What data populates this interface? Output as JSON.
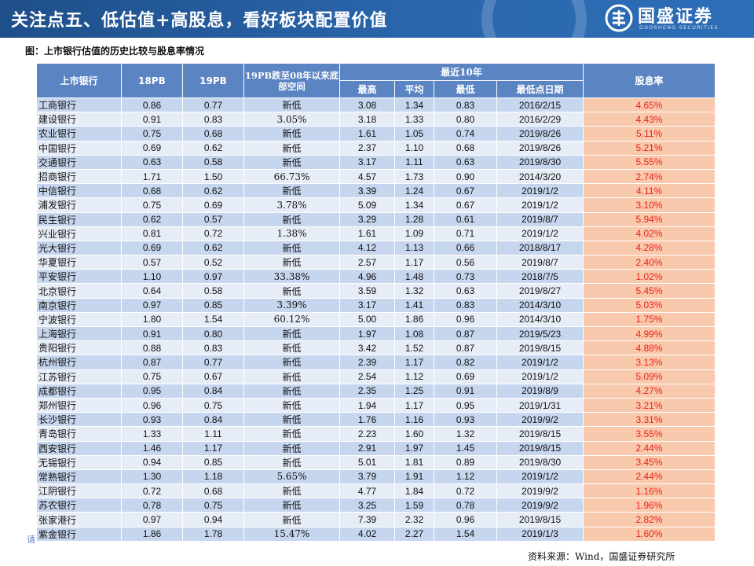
{
  "header": {
    "title": "关注点五、低估值+高股息，看好板块配置价值",
    "logo_name": "国盛证券",
    "logo_en": "GUOSHENG SECURITIES"
  },
  "caption": "图：上市银行估值的历史比较与股息率情况",
  "table": {
    "headers": {
      "bank": "上市银行",
      "pb18": "18PB",
      "pb19": "19PB",
      "space": "19PB跌至08年以来底部空间",
      "group": "最近10年",
      "high": "最高",
      "avg": "平均",
      "low": "最低",
      "low_date": "最低点日期",
      "yield": "股息率"
    },
    "rows": [
      [
        "工商银行",
        "0.86",
        "0.77",
        "新低",
        "3.08",
        "1.34",
        "0.83",
        "2016/2/15",
        "4.65%"
      ],
      [
        "建设银行",
        "0.91",
        "0.83",
        "3.05%",
        "3.18",
        "1.33",
        "0.80",
        "2016/2/29",
        "4.43%"
      ],
      [
        "农业银行",
        "0.75",
        "0.68",
        "新低",
        "1.61",
        "1.05",
        "0.74",
        "2019/8/26",
        "5.11%"
      ],
      [
        "中国银行",
        "0.69",
        "0.62",
        "新低",
        "2.37",
        "1.10",
        "0.68",
        "2019/8/26",
        "5.21%"
      ],
      [
        "交通银行",
        "0.63",
        "0.58",
        "新低",
        "3.17",
        "1.11",
        "0.63",
        "2019/8/30",
        "5.55%"
      ],
      [
        "招商银行",
        "1.71",
        "1.50",
        "66.73%",
        "4.57",
        "1.73",
        "0.90",
        "2014/3/20",
        "2.74%"
      ],
      [
        "中信银行",
        "0.68",
        "0.62",
        "新低",
        "3.39",
        "1.24",
        "0.67",
        "2019/1/2",
        "4.11%"
      ],
      [
        "浦发银行",
        "0.75",
        "0.69",
        "3.78%",
        "5.09",
        "1.34",
        "0.67",
        "2019/1/2",
        "3.10%"
      ],
      [
        "民生银行",
        "0.62",
        "0.57",
        "新低",
        "3.29",
        "1.28",
        "0.61",
        "2019/8/7",
        "5.94%"
      ],
      [
        "兴业银行",
        "0.81",
        "0.72",
        "1.38%",
        "1.61",
        "1.09",
        "0.71",
        "2019/1/2",
        "4.02%"
      ],
      [
        "光大银行",
        "0.69",
        "0.62",
        "新低",
        "4.12",
        "1.13",
        "0.66",
        "2018/8/17",
        "4.28%"
      ],
      [
        "华夏银行",
        "0.57",
        "0.52",
        "新低",
        "2.57",
        "1.17",
        "0.56",
        "2019/8/7",
        "2.40%"
      ],
      [
        "平安银行",
        "1.10",
        "0.97",
        "33.38%",
        "4.96",
        "1.48",
        "0.73",
        "2018/7/5",
        "1.02%"
      ],
      [
        "北京银行",
        "0.64",
        "0.58",
        "新低",
        "3.59",
        "1.32",
        "0.63",
        "2019/8/27",
        "5.45%"
      ],
      [
        "南京银行",
        "0.97",
        "0.85",
        "3.39%",
        "3.17",
        "1.41",
        "0.83",
        "2014/3/10",
        "5.03%"
      ],
      [
        "宁波银行",
        "1.80",
        "1.54",
        "60.12%",
        "5.00",
        "1.86",
        "0.96",
        "2014/3/10",
        "1.75%"
      ],
      [
        "上海银行",
        "0.91",
        "0.80",
        "新低",
        "1.97",
        "1.08",
        "0.87",
        "2019/5/23",
        "4.99%"
      ],
      [
        "贵阳银行",
        "0.88",
        "0.83",
        "新低",
        "3.42",
        "1.52",
        "0.87",
        "2019/8/15",
        "4.88%"
      ],
      [
        "杭州银行",
        "0.87",
        "0.77",
        "新低",
        "2.39",
        "1.17",
        "0.82",
        "2019/1/2",
        "3.13%"
      ],
      [
        "江苏银行",
        "0.75",
        "0.67",
        "新低",
        "2.54",
        "1.12",
        "0.69",
        "2019/1/2",
        "5.09%"
      ],
      [
        "成都银行",
        "0.95",
        "0.84",
        "新低",
        "2.35",
        "1.25",
        "0.91",
        "2019/8/9",
        "4.27%"
      ],
      [
        "郑州银行",
        "0.96",
        "0.75",
        "新低",
        "1.94",
        "1.17",
        "0.95",
        "2019/1/31",
        "3.21%"
      ],
      [
        "长沙银行",
        "0.93",
        "0.84",
        "新低",
        "1.76",
        "1.16",
        "0.93",
        "2019/9/2",
        "3.31%"
      ],
      [
        "青岛银行",
        "1.33",
        "1.11",
        "新低",
        "2.23",
        "1.60",
        "1.32",
        "2019/8/15",
        "3.55%"
      ],
      [
        "西安银行",
        "1.46",
        "1.17",
        "新低",
        "2.91",
        "1.97",
        "1.45",
        "2019/8/15",
        "2.44%"
      ],
      [
        "无锡银行",
        "0.94",
        "0.85",
        "新低",
        "5.01",
        "1.81",
        "0.89",
        "2019/8/30",
        "3.45%"
      ],
      [
        "常熟银行",
        "1.30",
        "1.18",
        "5.65%",
        "3.79",
        "1.91",
        "1.12",
        "2019/1/2",
        "2.44%"
      ],
      [
        "江阴银行",
        "0.72",
        "0.68",
        "新低",
        "4.77",
        "1.84",
        "0.72",
        "2019/9/2",
        "1.16%"
      ],
      [
        "苏农银行",
        "0.78",
        "0.75",
        "新低",
        "3.25",
        "1.59",
        "0.78",
        "2019/9/2",
        "1.96%"
      ],
      [
        "张家港行",
        "0.97",
        "0.94",
        "新低",
        "7.39",
        "2.32",
        "0.96",
        "2019/8/15",
        "2.82%"
      ],
      [
        "紫金银行",
        "1.86",
        "1.78",
        "15.47%",
        "4.02",
        "2.27",
        "1.54",
        "2019/1/3",
        "1.60%"
      ]
    ]
  },
  "footer": {
    "source": "资料来源：Wind，国盛证券研究所",
    "left_stub": "请"
  },
  "colors": {
    "header_bg": "#2a66ac",
    "table_header": "#5a84c2",
    "row_odd": "#c6d6ee",
    "row_even": "#e7edf7",
    "yield_bg": "#f8c9ac",
    "yield_text": "#e8231b"
  }
}
